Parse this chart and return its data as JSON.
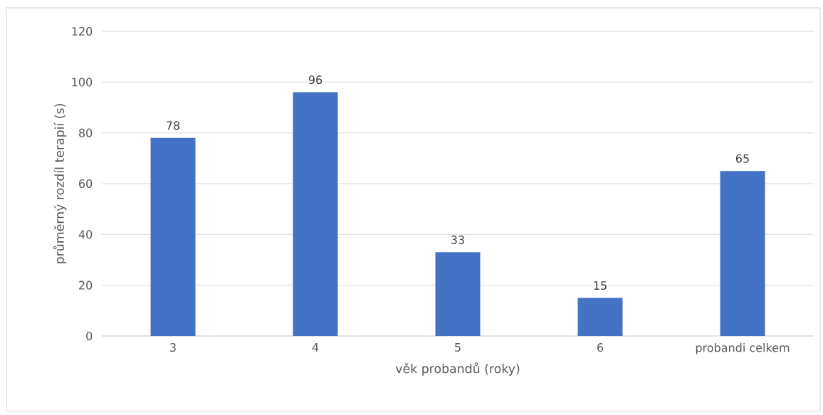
{
  "chart_data": {
    "type": "bar",
    "xlabel": "věk probandů (roky)",
    "ylabel": "průměrný rozdíl terapií (s)",
    "categories": [
      "3",
      "4",
      "5",
      "6",
      "probandi celkem"
    ],
    "values": [
      78,
      96,
      33,
      15,
      65
    ],
    "color": "#4472c4",
    "ylim": [
      0,
      120
    ],
    "yticks": [
      0,
      20,
      40,
      60,
      80,
      100,
      120
    ],
    "grid": "y",
    "data_labels": true
  }
}
